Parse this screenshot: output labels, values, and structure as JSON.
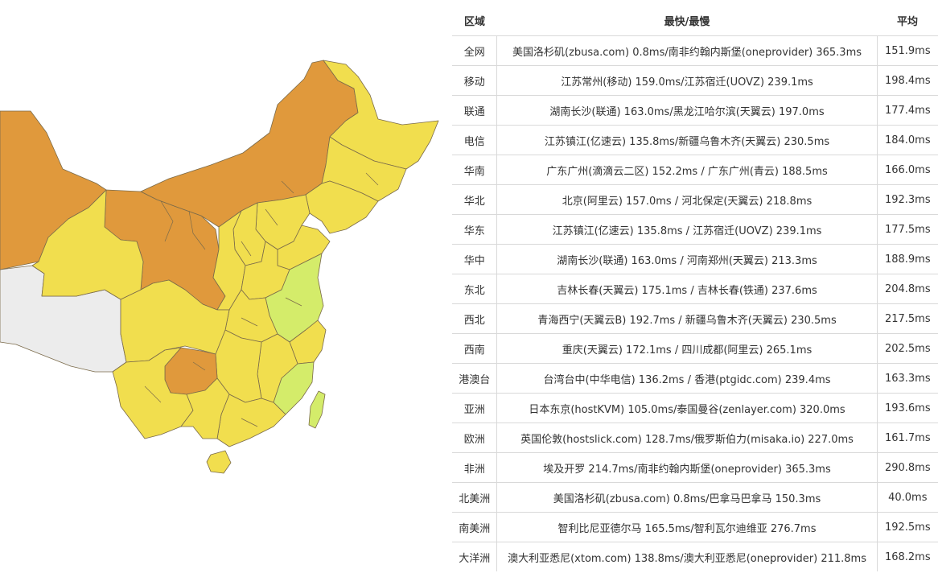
{
  "colors": {
    "slow": "#e0993c",
    "mid": "#f1de4e",
    "fast": "#d4ec6a",
    "no_data": "#ececec",
    "border": "#7a6a4a"
  },
  "map": {
    "regions": [
      {
        "id": "xinjiang",
        "level": "slow"
      },
      {
        "id": "gansu",
        "level": "slow"
      },
      {
        "id": "inner-mongolia",
        "level": "slow"
      },
      {
        "id": "heilongjiang",
        "level": "mid"
      },
      {
        "id": "jilin",
        "level": "mid"
      },
      {
        "id": "liaoning",
        "level": "mid"
      },
      {
        "id": "qinghai",
        "level": "mid"
      },
      {
        "id": "tibet",
        "level": "no_data"
      },
      {
        "id": "sichuan",
        "level": "mid"
      },
      {
        "id": "yunnan",
        "level": "mid"
      },
      {
        "id": "guizhou",
        "level": "slow"
      },
      {
        "id": "guangxi",
        "level": "mid"
      },
      {
        "id": "guangdong",
        "level": "mid"
      },
      {
        "id": "hunan",
        "level": "mid"
      },
      {
        "id": "jiangxi",
        "level": "mid"
      },
      {
        "id": "fujian",
        "level": "fast"
      },
      {
        "id": "zhejiang",
        "level": "mid"
      },
      {
        "id": "jiangsu-anhui",
        "level": "fast"
      },
      {
        "id": "shandong",
        "level": "mid"
      },
      {
        "id": "henan",
        "level": "mid"
      },
      {
        "id": "hubei",
        "level": "mid"
      },
      {
        "id": "shaanxi",
        "level": "mid"
      },
      {
        "id": "shanxi",
        "level": "mid"
      },
      {
        "id": "hebei",
        "level": "mid"
      },
      {
        "id": "taiwan",
        "level": "fast"
      },
      {
        "id": "hainan",
        "level": "mid"
      }
    ]
  },
  "table": {
    "headers": [
      "区域",
      "最快/最慢",
      "平均"
    ],
    "rows": [
      {
        "region": "全网",
        "detail": "美国洛杉矶(zbusa.com) 0.8ms/南非约翰内斯堡(oneprovider) 365.3ms",
        "avg": "151.9ms"
      },
      {
        "region": "移动",
        "detail": "江苏常州(移动) 159.0ms/江苏宿迁(UOVZ) 239.1ms",
        "avg": "198.4ms"
      },
      {
        "region": "联通",
        "detail": "湖南长沙(联通) 163.0ms/黑龙江哈尔滨(天翼云) 197.0ms",
        "avg": "177.4ms"
      },
      {
        "region": "电信",
        "detail": "江苏镇江(亿速云) 135.8ms/新疆乌鲁木齐(天翼云) 230.5ms",
        "avg": "184.0ms"
      },
      {
        "region": "华南",
        "detail": "广东广州(滴滴云二区) 152.2ms / 广东广州(青云) 188.5ms",
        "avg": "166.0ms"
      },
      {
        "region": "华北",
        "detail": "北京(阿里云) 157.0ms / 河北保定(天翼云) 218.8ms",
        "avg": "192.3ms"
      },
      {
        "region": "华东",
        "detail": "江苏镇江(亿速云) 135.8ms / 江苏宿迁(UOVZ) 239.1ms",
        "avg": "177.5ms"
      },
      {
        "region": "华中",
        "detail": "湖南长沙(联通) 163.0ms / 河南郑州(天翼云) 213.3ms",
        "avg": "188.9ms"
      },
      {
        "region": "东北",
        "detail": "吉林长春(天翼云) 175.1ms / 吉林长春(铁通) 237.6ms",
        "avg": "204.8ms"
      },
      {
        "region": "西北",
        "detail": "青海西宁(天翼云B) 192.7ms / 新疆乌鲁木齐(天翼云) 230.5ms",
        "avg": "217.5ms"
      },
      {
        "region": "西南",
        "detail": "重庆(天翼云) 172.1ms / 四川成都(阿里云) 265.1ms",
        "avg": "202.5ms"
      },
      {
        "region": "港澳台",
        "detail": "台湾台中(中华电信) 136.2ms / 香港(ptgidc.com) 239.4ms",
        "avg": "163.3ms"
      },
      {
        "region": "亚洲",
        "detail": "日本东京(hostKVM) 105.0ms/泰国曼谷(zenlayer.com) 320.0ms",
        "avg": "193.6ms"
      },
      {
        "region": "欧洲",
        "detail": "英国伦敦(hostslick.com) 128.7ms/俄罗斯伯力(misaka.io) 227.0ms",
        "avg": "161.7ms"
      },
      {
        "region": "非洲",
        "detail": "埃及开罗 214.7ms/南非约翰内斯堡(oneprovider) 365.3ms",
        "avg": "290.8ms"
      },
      {
        "region": "北美洲",
        "detail": "美国洛杉矶(zbusa.com) 0.8ms/巴拿马巴拿马 150.3ms",
        "avg": "40.0ms"
      },
      {
        "region": "南美洲",
        "detail": "智利比尼亚德尔马 165.5ms/智利瓦尔迪维亚 276.7ms",
        "avg": "192.5ms"
      },
      {
        "region": "大洋洲",
        "detail": "澳大利亚悉尼(xtom.com) 138.8ms/澳大利亚悉尼(oneprovider) 211.8ms",
        "avg": "168.2ms"
      }
    ]
  }
}
